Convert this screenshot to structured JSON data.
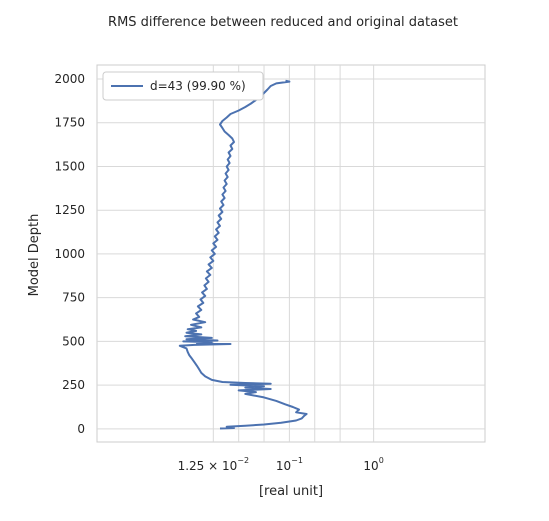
{
  "chart_data": {
    "type": "line",
    "title": "RMS difference between reduced and original dataset",
    "xlabel": "[real unit]",
    "ylabel": "Model Depth",
    "xscale": "log",
    "xlim": [
      0.00052,
      21
    ],
    "ylim": [
      -75,
      2080
    ],
    "grid": true,
    "legend_position": "top-left",
    "line_color": "#4c72b0",
    "x_ticks": [
      {
        "value": 0.0125,
        "base": "1.25 × 10",
        "exp": "−2"
      },
      {
        "value": 0.1,
        "base": "10",
        "exp": "−1"
      },
      {
        "value": 1,
        "base": "10",
        "exp": "0"
      }
    ],
    "x_grid_values": [
      0.0125,
      0.025,
      0.05,
      0.1,
      0.2,
      0.4,
      1
    ],
    "y_ticks": [
      0,
      250,
      500,
      750,
      1000,
      1250,
      1500,
      1750,
      2000
    ],
    "series": [
      {
        "name": "d=43 (99.90 %)",
        "x": [
          0.11,
          0.08,
          0.055,
          0.04,
          0.033,
          0.03,
          0.029,
          0.028,
          0.0275,
          0.027,
          0.027,
          0.0265,
          0.026,
          0.025,
          0.024,
          0.023,
          0.022,
          0.0215,
          0.021,
          0.0205,
          0.02,
          0.0195,
          0.019,
          0.0185,
          0.018,
          0.0175,
          0.017,
          0.0165,
          0.016,
          0.0155,
          0.015,
          0.0147,
          0.0145,
          0.0142,
          0.014,
          0.0138,
          0.0135,
          0.0133,
          0.013,
          0.0128,
          0.0125,
          0.012,
          0.0117,
          0.0115,
          0.0112,
          0.011,
          0.0108,
          0.0105,
          0.0103,
          0.01,
          0.0098,
          0.0097,
          0.0095,
          0.0094,
          0.0093,
          0.0092,
          0.0091,
          0.009,
          0.0089,
          0.0088,
          0.0088,
          0.0087,
          0.0086,
          0.0086,
          0.0085,
          0.0084,
          0.0084,
          0.0083,
          0.0083,
          0.0082,
          0.0082,
          0.0081,
          0.0081,
          0.008,
          0.008,
          0.0079,
          0.0079,
          0.0078,
          0.0078,
          0.0077,
          0.0077,
          0.0076,
          0.0076,
          0.0075,
          0.0075,
          0.0074,
          0.0074,
          0.0073,
          0.0073,
          0.0072,
          0.0072,
          0.0071,
          0.0071,
          0.007,
          0.007,
          0.0069,
          0.0069,
          0.0068,
          0.0068,
          0.0067,
          0.0067,
          0.0066,
          0.0066,
          0.0065,
          0.0065,
          0.0064,
          0.0064,
          0.0063,
          0.0063,
          0.0062,
          0.0062,
          0.0061,
          0.0061,
          0.006,
          0.006,
          0.0059,
          0.0059,
          0.0058,
          0.0058,
          0.0057,
          0.0057,
          0.0056,
          0.0056,
          0.0055,
          0.0055,
          0.0054,
          0.0054,
          0.0053,
          0.0053,
          0.0052
        ],
        "x_points": [
          [
            0.015,
            2
          ],
          [
            0.022,
            5
          ],
          [
            0.018,
            12
          ],
          [
            0.03,
            18
          ],
          [
            0.05,
            25
          ],
          [
            0.08,
            35
          ],
          [
            0.12,
            48
          ],
          [
            0.14,
            60
          ],
          [
            0.15,
            75
          ],
          [
            0.16,
            85
          ],
          [
            0.12,
            95
          ],
          [
            0.13,
            110
          ],
          [
            0.11,
            125
          ],
          [
            0.09,
            140
          ],
          [
            0.07,
            160
          ],
          [
            0.05,
            180
          ],
          [
            0.03,
            200
          ],
          [
            0.04,
            210
          ],
          [
            0.025,
            220
          ],
          [
            0.06,
            228
          ],
          [
            0.03,
            236
          ],
          [
            0.05,
            244
          ],
          [
            0.02,
            252
          ],
          [
            0.06,
            258
          ],
          [
            0.03,
            262
          ],
          [
            0.016,
            268
          ],
          [
            0.012,
            280
          ],
          [
            0.01,
            300
          ],
          [
            0.009,
            320
          ],
          [
            0.0085,
            340
          ],
          [
            0.008,
            360
          ],
          [
            0.0075,
            380
          ],
          [
            0.007,
            400
          ],
          [
            0.0065,
            420
          ],
          [
            0.0062,
            440
          ],
          [
            0.006,
            460
          ],
          [
            0.005,
            475
          ],
          [
            0.0075,
            480
          ],
          [
            0.02,
            485
          ],
          [
            0.008,
            490
          ],
          [
            0.012,
            495
          ],
          [
            0.0055,
            500
          ],
          [
            0.014,
            505
          ],
          [
            0.006,
            512
          ],
          [
            0.012,
            520
          ],
          [
            0.0058,
            530
          ],
          [
            0.009,
            540
          ],
          [
            0.006,
            550
          ],
          [
            0.0078,
            560
          ],
          [
            0.0062,
            570
          ],
          [
            0.009,
            580
          ],
          [
            0.0068,
            595
          ],
          [
            0.01,
            610
          ],
          [
            0.0072,
            625
          ],
          [
            0.0085,
            640
          ],
          [
            0.0078,
            660
          ],
          [
            0.009,
            680
          ],
          [
            0.0082,
            700
          ],
          [
            0.0095,
            720
          ],
          [
            0.0088,
            740
          ],
          [
            0.01,
            760
          ],
          [
            0.0092,
            780
          ],
          [
            0.0105,
            800
          ],
          [
            0.0098,
            820
          ],
          [
            0.011,
            840
          ],
          [
            0.0102,
            860
          ],
          [
            0.0115,
            880
          ],
          [
            0.0105,
            900
          ],
          [
            0.012,
            920
          ],
          [
            0.011,
            940
          ],
          [
            0.0125,
            960
          ],
          [
            0.0115,
            980
          ],
          [
            0.013,
            1000
          ],
          [
            0.012,
            1020
          ],
          [
            0.0135,
            1040
          ],
          [
            0.0125,
            1060
          ],
          [
            0.014,
            1080
          ],
          [
            0.013,
            1100
          ],
          [
            0.0145,
            1120
          ],
          [
            0.0135,
            1140
          ],
          [
            0.015,
            1160
          ],
          [
            0.014,
            1180
          ],
          [
            0.0155,
            1200
          ],
          [
            0.0145,
            1220
          ],
          [
            0.016,
            1240
          ],
          [
            0.015,
            1260
          ],
          [
            0.0165,
            1280
          ],
          [
            0.0155,
            1300
          ],
          [
            0.017,
            1320
          ],
          [
            0.016,
            1340
          ],
          [
            0.0175,
            1360
          ],
          [
            0.0165,
            1380
          ],
          [
            0.018,
            1400
          ],
          [
            0.017,
            1420
          ],
          [
            0.0185,
            1440
          ],
          [
            0.0175,
            1460
          ],
          [
            0.019,
            1480
          ],
          [
            0.018,
            1500
          ],
          [
            0.0195,
            1520
          ],
          [
            0.0185,
            1540
          ],
          [
            0.02,
            1560
          ],
          [
            0.019,
            1580
          ],
          [
            0.021,
            1600
          ],
          [
            0.02,
            1620
          ],
          [
            0.022,
            1640
          ],
          [
            0.021,
            1660
          ],
          [
            0.019,
            1680
          ],
          [
            0.017,
            1700
          ],
          [
            0.016,
            1720
          ],
          [
            0.015,
            1740
          ],
          [
            0.016,
            1760
          ],
          [
            0.018,
            1780
          ],
          [
            0.02,
            1800
          ],
          [
            0.025,
            1820
          ],
          [
            0.03,
            1840
          ],
          [
            0.035,
            1860
          ],
          [
            0.04,
            1880
          ],
          [
            0.045,
            1900
          ],
          [
            0.05,
            1920
          ],
          [
            0.055,
            1940
          ],
          [
            0.06,
            1960
          ],
          [
            0.07,
            1975
          ],
          [
            0.1,
            1985
          ],
          [
            0.09,
            1990
          ]
        ]
      }
    ]
  }
}
